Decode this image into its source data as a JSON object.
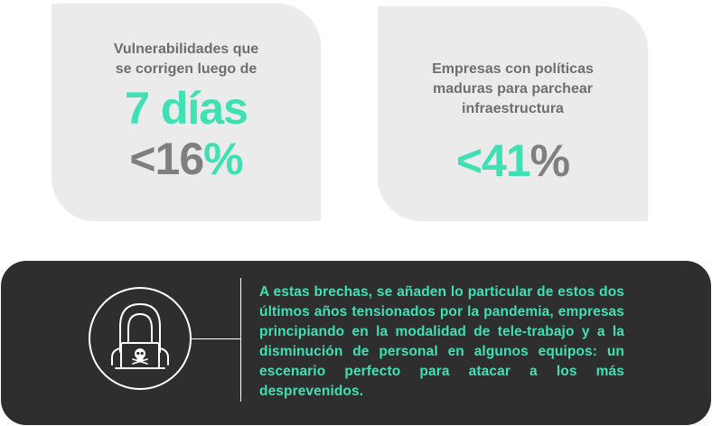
{
  "stat_left": {
    "label": "Vulnerabilidades que\nse corrigen luego de",
    "highlight": "7 días",
    "value_prefix": "<16",
    "value_suffix": "%"
  },
  "stat_right": {
    "label": "Empresas con políticas\nmaduras para parchear\ninfraestructura",
    "value_prefix": "<41",
    "value_suffix": "%"
  },
  "banner": {
    "icon": "hacker-laptop-icon",
    "text": "A estas brechas, se añaden lo particular de estos dos últimos años tensionados por la pandemia, empresas principiando en la modalidad de tele-trabajo y a la disminución de personal en algunos equipos: un escenario perfecto para atacar a los más desprevenidos."
  },
  "colors": {
    "accent": "#3fe0b3",
    "card_bg": "#ebebeb",
    "banner_bg": "#2e2e2e",
    "label_gray": "#6e6e6e"
  }
}
